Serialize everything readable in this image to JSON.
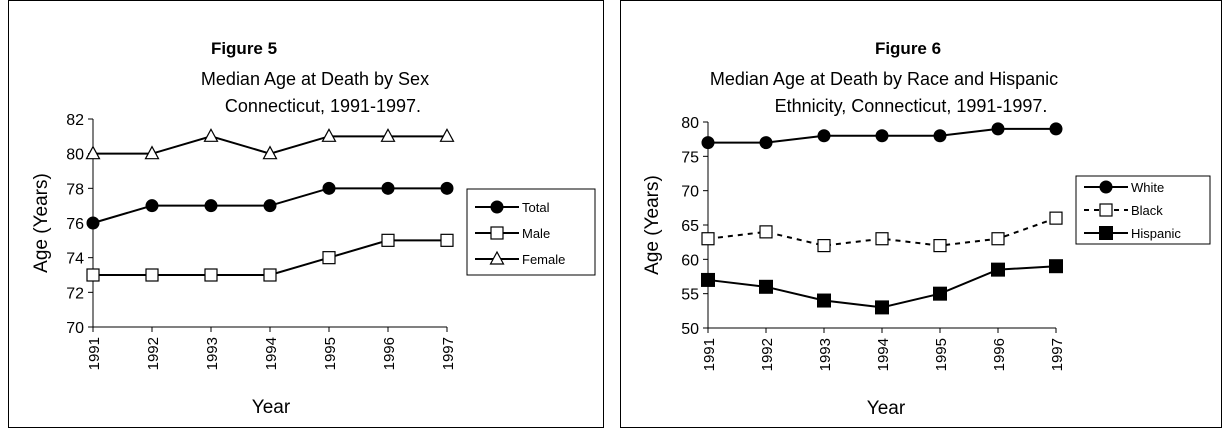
{
  "chart_data": [
    {
      "type": "line",
      "title": "Figure 5",
      "subtitle_lines": [
        "Median Age at Death by Sex",
        "Connecticut, 1991-1997."
      ],
      "xlabel": "Year",
      "ylabel": "Age (Years)",
      "x": [
        "1991",
        "1992",
        "1993",
        "1994",
        "1995",
        "1996",
        "1997"
      ],
      "ylim": [
        70,
        82
      ],
      "yticks": [
        "70",
        "72",
        "74",
        "76",
        "78",
        "80",
        "82"
      ],
      "legend_position": "right",
      "series": [
        {
          "name": "Total",
          "marker": "filled-circle",
          "line": "solid",
          "values": [
            76,
            77,
            77,
            77,
            78,
            78,
            78
          ]
        },
        {
          "name": "Male",
          "marker": "open-square",
          "line": "solid",
          "values": [
            73,
            73,
            73,
            73,
            74,
            75,
            75
          ]
        },
        {
          "name": "Female",
          "marker": "open-triangle",
          "line": "solid",
          "values": [
            80,
            80,
            81,
            80,
            81,
            81,
            81
          ]
        }
      ]
    },
    {
      "type": "line",
      "title": "Figure 6",
      "subtitle_lines": [
        "Median Age at Death by Race and Hispanic",
        "Ethnicity, Connecticut, 1991-1997."
      ],
      "xlabel": "Year",
      "ylabel": "Age (Years)",
      "x": [
        "1991",
        "1992",
        "1993",
        "1994",
        "1995",
        "1996",
        "1997"
      ],
      "ylim": [
        50,
        80
      ],
      "yticks": [
        "50",
        "55",
        "60",
        "65",
        "70",
        "75",
        "80"
      ],
      "legend_position": "right",
      "series": [
        {
          "name": "White",
          "marker": "filled-circle",
          "line": "solid",
          "values": [
            77,
            77,
            78,
            78,
            78,
            79,
            79
          ]
        },
        {
          "name": "Black",
          "marker": "open-square",
          "line": "dashed",
          "values": [
            63,
            64,
            62,
            63,
            62,
            63,
            66
          ]
        },
        {
          "name": "Hispanic",
          "marker": "filled-square",
          "line": "solid",
          "values": [
            57,
            56,
            54,
            53,
            55,
            58.5,
            59
          ]
        }
      ]
    }
  ]
}
